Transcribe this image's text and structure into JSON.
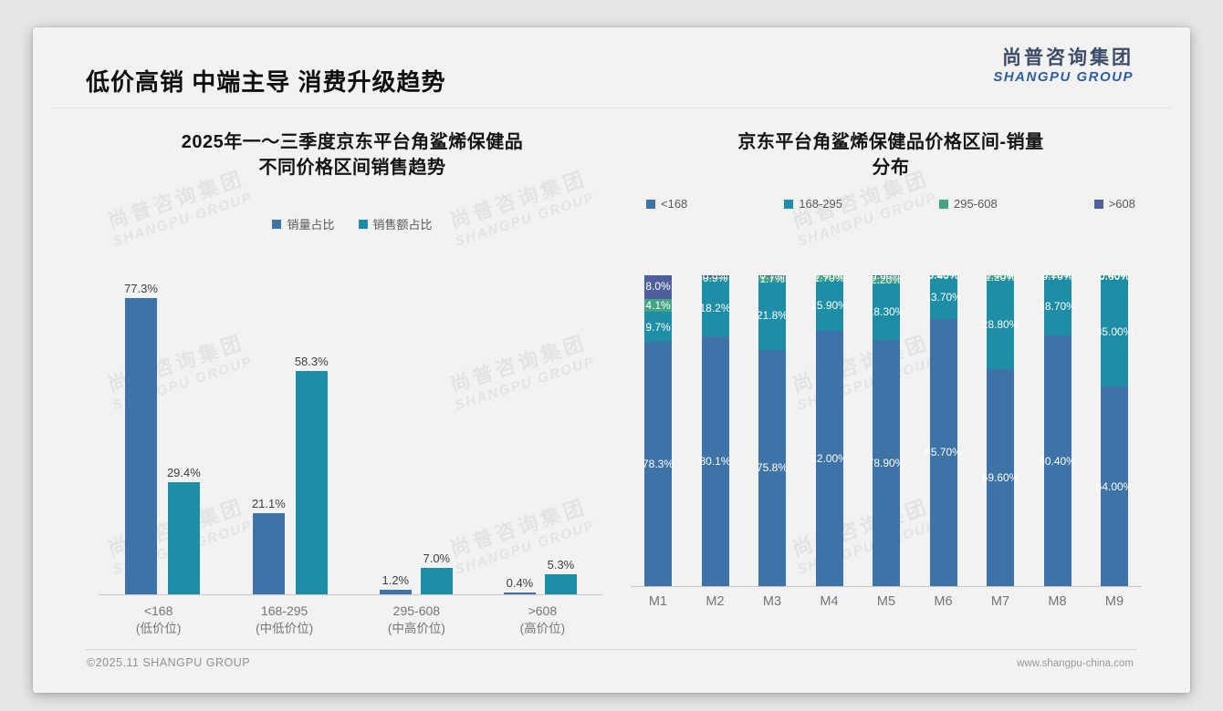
{
  "header": {
    "title": "低价高销 中端主导 消费升级趋势"
  },
  "logo": {
    "cn": "尚普咨询集团",
    "en": "SHANGPU GROUP"
  },
  "watermark": {
    "cn": "尚普咨询集团",
    "en": "SHANGPU GROUP"
  },
  "footer": {
    "left": "©2025.11 SHANGPU GROUP",
    "right": "www.shangpu-china.com"
  },
  "colors": {
    "series_blue": "#3e73a8",
    "series_teal": "#1d8ea6",
    "series_green": "#43a383",
    "series_indigo": "#4e5f9b",
    "logo_cn": "#3d4c66",
    "logo_en": "#2f5f9f"
  },
  "chart_data": [
    {
      "type": "bar",
      "title_lines": [
        "2025年一～三季度京东平台角鲨烯保健品",
        "不同价格区间销售趋势"
      ],
      "categories": [
        "<168",
        "168-295",
        "295-608",
        ">608"
      ],
      "category_sublabels": [
        "(低价位)",
        "(中低价位)",
        "(中高价位)",
        "(高价位)"
      ],
      "series": [
        {
          "name": "销量占比",
          "color": "#3e73a8",
          "values": [
            77.3,
            21.1,
            1.2,
            0.4
          ],
          "labels": [
            "77.3%",
            "21.1%",
            "1.2%",
            "0.4%"
          ]
        },
        {
          "name": "销售额占比",
          "color": "#1d8ea6",
          "values": [
            29.4,
            58.3,
            7.0,
            5.3
          ],
          "labels": [
            "29.4%",
            "58.3%",
            "7.0%",
            "5.3%"
          ]
        }
      ],
      "ylim": [
        0,
        100
      ],
      "grid": false,
      "legend_position": "top"
    },
    {
      "type": "stacked-bar",
      "title_lines": [
        "京东平台角鲨烯保健品价格区间-销量",
        "分布"
      ],
      "categories": [
        "M1",
        "M2",
        "M3",
        "M4",
        "M5",
        "M6",
        "M7",
        "M8",
        "M9"
      ],
      "series": [
        {
          "name": "<168",
          "color": "#3e73a8",
          "values": [
            78.3,
            80.1,
            75.8,
            82.0,
            78.9,
            85.7,
            69.6,
            80.4,
            64.0
          ],
          "labels": [
            "78.3%",
            "80.1%",
            "75.8%",
            "82.00%",
            "78.90%",
            "85.70%",
            "69.60%",
            "80.40%",
            "64.00%"
          ]
        },
        {
          "name": "168-295",
          "color": "#1d8ea6",
          "values": [
            9.7,
            18.2,
            21.8,
            15.9,
            18.3,
            13.7,
            28.8,
            18.7,
            35.0
          ],
          "labels": [
            "9.7%",
            "18.2%",
            "21.8%",
            "15.90%",
            "18.30%",
            "13.70%",
            "28.80%",
            "18.70%",
            "35.00%"
          ]
        },
        {
          "name": "295-608",
          "color": "#43a383",
          "values": [
            4.1,
            0.9,
            1.7,
            1.7,
            2.2,
            0.4,
            1.2,
            0.7,
            0.6
          ],
          "labels": [
            "4.1%",
            "0.9%",
            "1.7%",
            "1.70%",
            "2.20%",
            "0.40%",
            "1.20%",
            "0.70%",
            "0.60%"
          ]
        },
        {
          "name": ">608",
          "color": "#4e5f9b",
          "values": [
            8.0,
            0.8,
            0.7,
            0.4,
            0.6,
            0.2,
            0.4,
            0.2,
            0.4
          ],
          "labels": [
            "8.0%",
            "0.8%",
            "0.7%",
            "0.40%",
            "0.60%",
            "0.20%",
            "0.40%",
            "0.20%",
            "0.40%"
          ]
        }
      ],
      "ylim": [
        0,
        100
      ],
      "grid": false,
      "legend_position": "top"
    }
  ]
}
